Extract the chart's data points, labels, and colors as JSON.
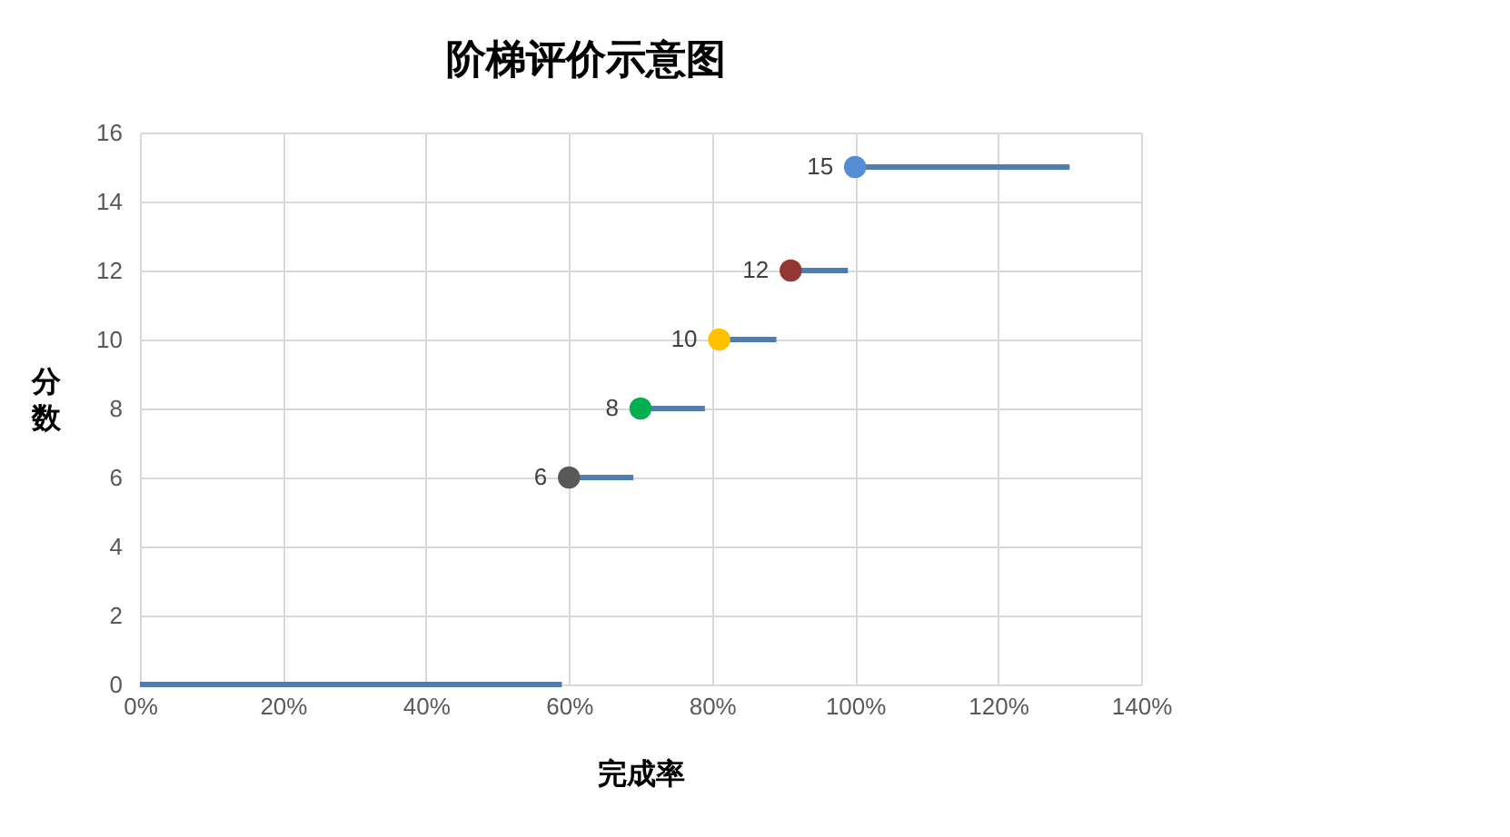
{
  "chart_data": {
    "type": "line",
    "title": "阶梯评价示意图",
    "xlabel": "完成率",
    "ylabel": "分数",
    "xlim": [
      0,
      140
    ],
    "xticks": [
      {
        "value": 0,
        "label": "0%"
      },
      {
        "value": 20,
        "label": "20%"
      },
      {
        "value": 40,
        "label": "40%"
      },
      {
        "value": 60,
        "label": "60%"
      },
      {
        "value": 80,
        "label": "80%"
      },
      {
        "value": 100,
        "label": "100%"
      },
      {
        "value": 120,
        "label": "120%"
      },
      {
        "value": 140,
        "label": "140%"
      }
    ],
    "ylim": [
      0,
      16
    ],
    "yticks": [
      0,
      2,
      4,
      6,
      8,
      10,
      12,
      14,
      16
    ],
    "grid": true,
    "series": [
      {
        "type": "line",
        "color": "#4f7db1",
        "marker": "none",
        "x": [
          0,
          59,
          null,
          60,
          69,
          null,
          70,
          79,
          null,
          81,
          89,
          null,
          91,
          99,
          null,
          100,
          130
        ],
        "values": [
          0,
          0,
          null,
          6,
          6,
          null,
          8,
          8,
          null,
          10,
          10,
          null,
          12,
          12,
          null,
          15,
          15
        ]
      },
      {
        "type": "scatter",
        "marker": "circle",
        "x": [
          60,
          70,
          81,
          91,
          100
        ],
        "values": [
          6,
          8,
          10,
          12,
          15
        ],
        "colors": [
          "#595959",
          "#00b050",
          "#ffc000",
          "#943634",
          "#558ed5"
        ],
        "value_labels": [
          "6",
          "8",
          "10",
          "12",
          "15"
        ]
      }
    ]
  }
}
